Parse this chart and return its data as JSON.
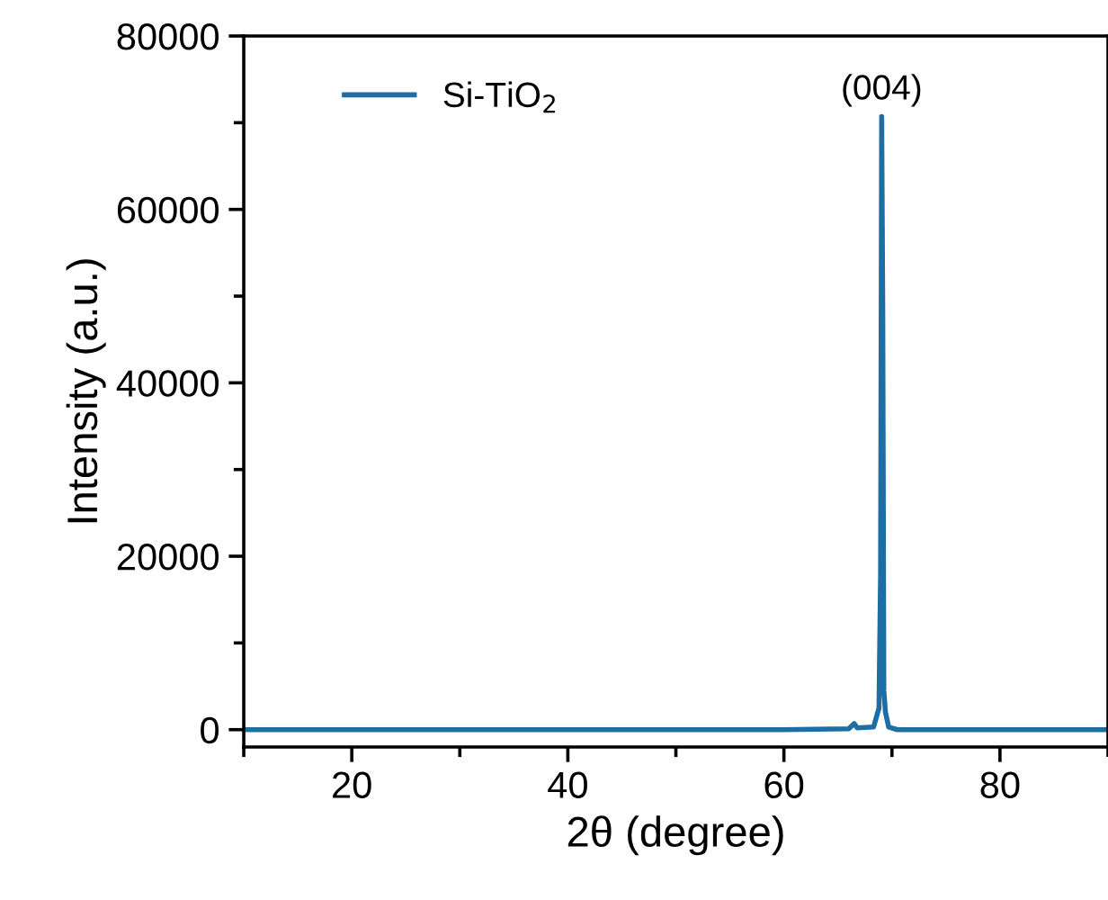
{
  "chart_data": {
    "type": "line",
    "xlabel": "2θ (degree)",
    "ylabel": "Intensity (a.u.)",
    "xlim": [
      10,
      90
    ],
    "ylim": [
      -2000,
      80000
    ],
    "xticks": [
      20,
      40,
      60,
      80
    ],
    "yticks": [
      0,
      20000,
      40000,
      60000,
      80000
    ],
    "series": [
      {
        "name": "Si-TiO$_{2}$",
        "color": "#1f6ea3",
        "x": [
          10,
          30,
          50,
          60,
          66.0,
          66.5,
          66.8,
          68.3,
          68.8,
          68.95,
          69.05,
          69.15,
          69.25,
          69.4,
          69.7,
          70.5,
          80,
          90
        ],
        "values": [
          0,
          0,
          0,
          0,
          100,
          700,
          200,
          300,
          2500,
          17900,
          70700,
          48000,
          4500,
          2000,
          300,
          0,
          0,
          0
        ]
      }
    ],
    "annotations": [
      {
        "text": "(004)",
        "x": 69.05,
        "y": 70700
      }
    ],
    "legend": "top left",
    "grid": false
  }
}
